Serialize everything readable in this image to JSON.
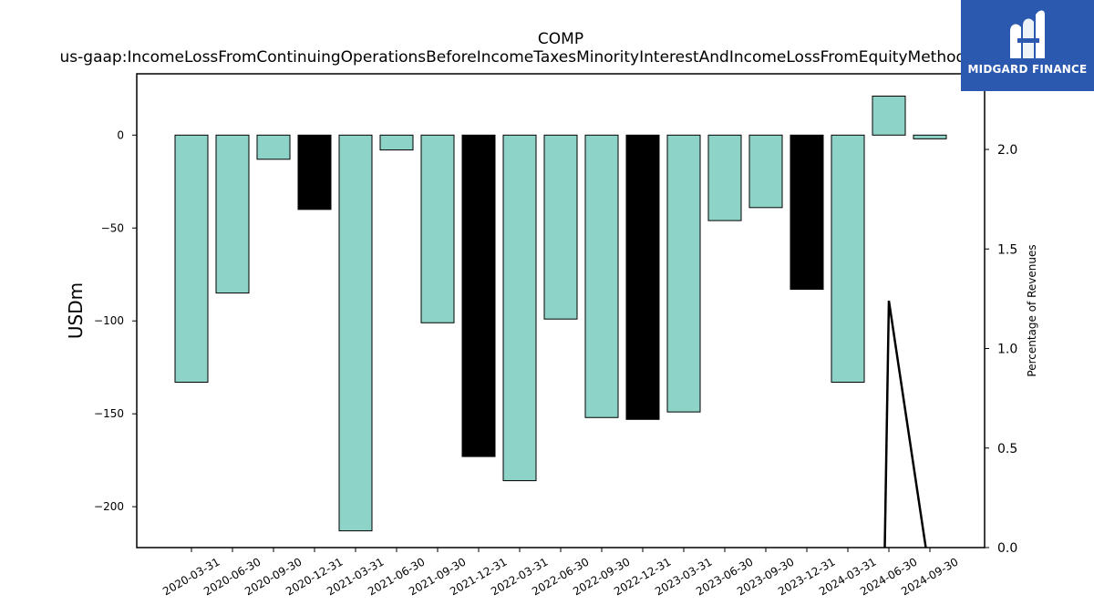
{
  "chart_data": {
    "type": "bar",
    "title": "COMP",
    "subtitle": "us-gaap:IncomeLossFromContinuingOperationsBeforeIncomeTaxesMinorityInterestAndIncomeLossFromEquityMethodInvestments",
    "ylabel": "USDm",
    "y2label": "Percentage of Revenues",
    "ylim": [
      -222,
      33
    ],
    "y2lim": [
      0.0,
      2.38
    ],
    "yticks": [
      "0",
      "−50",
      "−100",
      "−150",
      "−200"
    ],
    "y2ticks": [
      "0.0",
      "0.5",
      "1.0",
      "1.5",
      "2.0"
    ],
    "categories": [
      "2020-03-31",
      "2020-06-30",
      "2020-09-30",
      "2020-12-31",
      "2021-03-31",
      "2021-06-30",
      "2021-09-30",
      "2021-12-31",
      "2022-03-31",
      "2022-06-30",
      "2022-09-30",
      "2022-12-31",
      "2023-03-31",
      "2023-06-30",
      "2023-09-30",
      "2023-12-31",
      "2024-03-31",
      "2024-06-30",
      "2024-09-30"
    ],
    "values": [
      -133,
      -85,
      -13,
      -40,
      -213,
      -8,
      -101,
      -173,
      -186,
      -99,
      -152,
      -153,
      -149,
      -46,
      -39,
      -83,
      -133,
      21,
      -2
    ],
    "bar_colors": [
      "#8ed3c7",
      "#8ed3c7",
      "#8ed3c7",
      "#000000",
      "#8ed3c7",
      "#8ed3c7",
      "#8ed3c7",
      "#000000",
      "#8ed3c7",
      "#8ed3c7",
      "#8ed3c7",
      "#000000",
      "#8ed3c7",
      "#8ed3c7",
      "#8ed3c7",
      "#000000",
      "#8ed3c7",
      "#8ed3c7",
      "#8ed3c7"
    ],
    "line_series": {
      "name": "",
      "points": [
        [
          16.9,
          0.0
        ],
        [
          17.0,
          1.24
        ],
        [
          17.9,
          0.0
        ]
      ],
      "color": "#000000"
    },
    "grid": false,
    "legend": "none"
  },
  "logo": {
    "text": "MIDGARD FINANCE",
    "color": "#2b59b0"
  }
}
